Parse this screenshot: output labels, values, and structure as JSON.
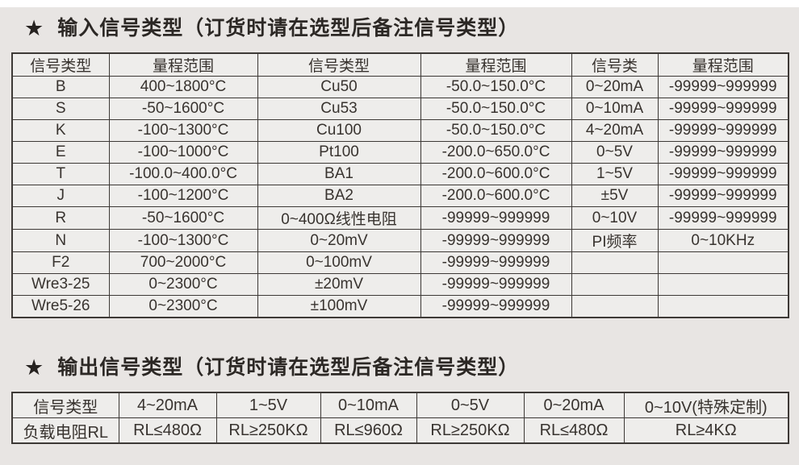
{
  "titles": {
    "input": {
      "star": "★",
      "text": "输入信号类型（订货时请在选型后备注信号类型）"
    },
    "output": {
      "star": "★",
      "text": "输出信号类型（订货时请在选型后备注信号类型）"
    }
  },
  "colors": {
    "page_bg": "#e8e5e3",
    "cell_bg": "#eeedeb",
    "border": "#3d3936",
    "text": "#38332f",
    "top_strip": "#ffffff"
  },
  "input_table": {
    "headers": [
      "信号类型",
      "量程范围",
      "信号类型",
      "量程范围",
      "信号类",
      "量程范围"
    ],
    "rows": [
      [
        "B",
        "400~1800°C",
        "Cu50",
        "-50.0~150.0°C",
        "0~20mA",
        "-99999~999999"
      ],
      [
        "S",
        "-50~1600°C",
        "Cu53",
        "-50.0~150.0°C",
        "0~10mA",
        "-99999~999999"
      ],
      [
        "K",
        "-100~1300°C",
        "Cu100",
        "-50.0~150.0°C",
        "4~20mA",
        "-99999~999999"
      ],
      [
        "E",
        "-100~1000°C",
        "Pt100",
        "-200.0~650.0°C",
        "0~5V",
        "-99999~999999"
      ],
      [
        "T",
        "-100.0~400.0°C",
        "BA1",
        "-200.0~600.0°C",
        "1~5V",
        "-99999~999999"
      ],
      [
        "J",
        "-100~1200°C",
        "BA2",
        "-200.0~600.0°C",
        "±5V",
        "-99999~999999"
      ],
      [
        "R",
        "-50~1600°C",
        "0~400Ω线性电阻",
        "-99999~999999",
        "0~10V",
        "-99999~999999"
      ],
      [
        "N",
        "-100~1300°C",
        "0~20mV",
        "-99999~999999",
        "PI频率",
        "0~10KHz"
      ],
      [
        "F2",
        "700~2000°C",
        "0~100mV",
        "-99999~999999",
        "",
        ""
      ],
      [
        "Wre3-25",
        "0~2300°C",
        "±20mV",
        "-99999~999999",
        "",
        ""
      ],
      [
        "Wre5-26",
        "0~2300°C",
        "±100mV",
        "-99999~999999",
        "",
        ""
      ]
    ]
  },
  "output_table": {
    "rows": [
      [
        "信号类型",
        "4~20mA",
        "1~5V",
        "0~10mA",
        "0~5V",
        "0~20mA",
        "0~10V(特殊定制)"
      ],
      [
        "负载电阻RL",
        "RL≤480Ω",
        "RL≥250KΩ",
        "RL≤960Ω",
        "RL≥250KΩ",
        "RL≤480Ω",
        "RL≥4KΩ"
      ]
    ]
  }
}
